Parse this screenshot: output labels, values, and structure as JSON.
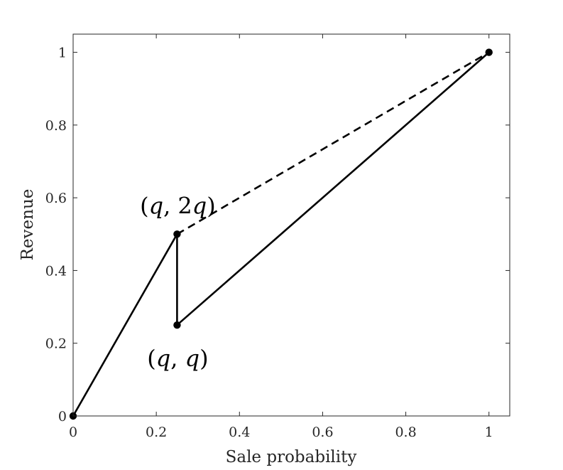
{
  "chart_data": {
    "type": "line",
    "title": "",
    "xlabel": "Sale probability",
    "ylabel": "Revenue",
    "xlim": [
      0,
      1.05
    ],
    "ylim": [
      0,
      1.05
    ],
    "grid": false,
    "x_ticks": [
      0,
      0.2,
      0.4,
      0.6,
      0.8,
      1
    ],
    "x_tick_labels": [
      "0",
      "0.2",
      "0.4",
      "0.6",
      "0.8",
      "1"
    ],
    "y_ticks": [
      0,
      0.2,
      0.4,
      0.6,
      0.8,
      1
    ],
    "y_tick_labels": [
      "0",
      "0.2",
      "0.4",
      "0.6",
      "0.8",
      "1"
    ],
    "series": [
      {
        "style": "solid",
        "color": "#000000",
        "points": [
          [
            0,
            0
          ],
          [
            0.25,
            0.5
          ],
          [
            0.25,
            0.25
          ],
          [
            1,
            1
          ]
        ]
      },
      {
        "style": "dashed",
        "color": "#000000",
        "points": [
          [
            0.25,
            0.5
          ],
          [
            1,
            1
          ]
        ]
      }
    ],
    "markers": [
      [
        0,
        0
      ],
      [
        0.25,
        0.5
      ],
      [
        0.25,
        0.25
      ],
      [
        1,
        1
      ]
    ],
    "annotations": [
      {
        "text": "(q, 2q)",
        "x": 0.25,
        "y": 0.5,
        "position": "above"
      },
      {
        "text": "(q, q)",
        "x": 0.25,
        "y": 0.25,
        "position": "below"
      }
    ]
  }
}
